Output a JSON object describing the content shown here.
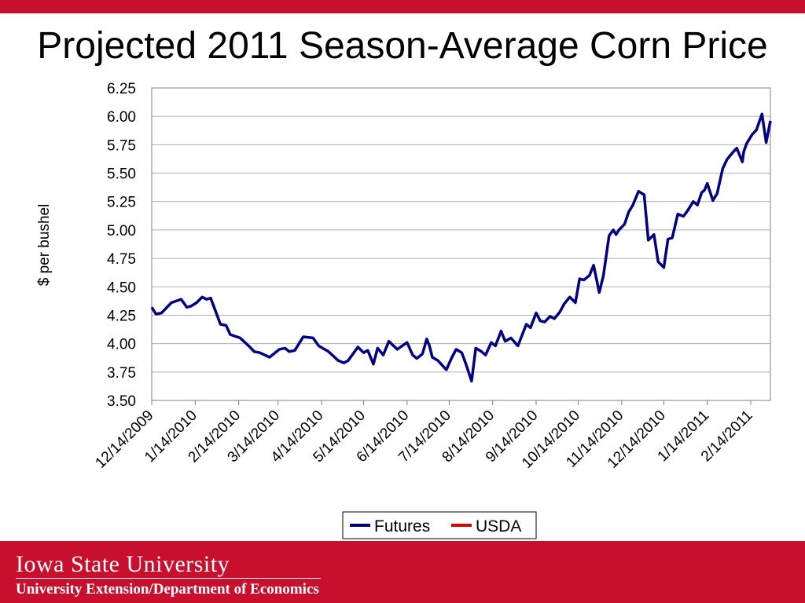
{
  "header": {
    "title": "Projected 2011 Season-Average Corn Price"
  },
  "footer": {
    "university": "Iowa State University",
    "department": "University Extension/Department of Economics"
  },
  "colors": {
    "brand_red": "#c8102e",
    "futures_line": "#000080",
    "usda_line": "#e00000"
  },
  "chart_data": {
    "type": "line",
    "title": "Projected 2011 Season-Average Corn Price",
    "ylabel": "$ per bushel",
    "xlabel": "",
    "ylim": [
      3.5,
      6.25
    ],
    "y_ticks": [
      "3.50",
      "3.75",
      "4.00",
      "4.25",
      "4.50",
      "4.75",
      "5.00",
      "5.25",
      "5.50",
      "5.75",
      "6.00",
      "6.25"
    ],
    "x_range": [
      "2009-12-14",
      "2011-02-28"
    ],
    "x_ticks": [
      "12/14/2009",
      "1/14/2010",
      "2/14/2010",
      "3/14/2010",
      "4/14/2010",
      "5/14/2010",
      "6/14/2010",
      "7/14/2010",
      "8/14/2010",
      "9/14/2010",
      "10/14/2010",
      "11/14/2010",
      "12/14/2010",
      "1/14/2011",
      "2/14/2011"
    ],
    "grid": true,
    "legend": "bottom",
    "series": [
      {
        "name": "Futures",
        "x": [
          "2009-12-14",
          "2009-12-17",
          "2009-12-21",
          "2009-12-28",
          "2010-01-04",
          "2010-01-08",
          "2010-01-11",
          "2010-01-15",
          "2010-01-19",
          "2010-01-22",
          "2010-01-25",
          "2010-02-01",
          "2010-02-05",
          "2010-02-08",
          "2010-02-15",
          "2010-02-22",
          "2010-02-25",
          "2010-03-01",
          "2010-03-08",
          "2010-03-15",
          "2010-03-19",
          "2010-03-22",
          "2010-03-26",
          "2010-04-01",
          "2010-04-08",
          "2010-04-12",
          "2010-04-19",
          "2010-04-26",
          "2010-04-30",
          "2010-05-03",
          "2010-05-10",
          "2010-05-14",
          "2010-05-17",
          "2010-05-21",
          "2010-05-24",
          "2010-05-28",
          "2010-06-01",
          "2010-06-07",
          "2010-06-14",
          "2010-06-18",
          "2010-06-21",
          "2010-06-25",
          "2010-06-28",
          "2010-06-30",
          "2010-07-02",
          "2010-07-06",
          "2010-07-12",
          "2010-07-16",
          "2010-07-19",
          "2010-07-23",
          "2010-07-26",
          "2010-07-30",
          "2010-08-02",
          "2010-08-06",
          "2010-08-09",
          "2010-08-13",
          "2010-08-16",
          "2010-08-20",
          "2010-08-23",
          "2010-08-27",
          "2010-09-01",
          "2010-09-07",
          "2010-09-10",
          "2010-09-14",
          "2010-09-17",
          "2010-09-20",
          "2010-09-24",
          "2010-09-27",
          "2010-10-01",
          "2010-10-04",
          "2010-10-08",
          "2010-10-12",
          "2010-10-15",
          "2010-10-18",
          "2010-10-22",
          "2010-10-25",
          "2010-10-29",
          "2010-11-01",
          "2010-11-05",
          "2010-11-08",
          "2010-11-10",
          "2010-11-12",
          "2010-11-16",
          "2010-11-19",
          "2010-11-22",
          "2010-11-26",
          "2010-11-30",
          "2010-12-03",
          "2010-12-07",
          "2010-12-10",
          "2010-12-14",
          "2010-12-17",
          "2010-12-20",
          "2010-12-24",
          "2010-12-28",
          "2010-12-31",
          "2011-01-04",
          "2011-01-07",
          "2011-01-10",
          "2011-01-12",
          "2011-01-14",
          "2011-01-18",
          "2011-01-21",
          "2011-01-25",
          "2011-01-28",
          "2011-02-01",
          "2011-02-04",
          "2011-02-08",
          "2011-02-09",
          "2011-02-11",
          "2011-02-15",
          "2011-02-18",
          "2011-02-22",
          "2011-02-24",
          "2011-02-25",
          "2011-02-28"
        ],
        "values": [
          4.32,
          4.26,
          4.27,
          4.36,
          4.39,
          4.32,
          4.33,
          4.36,
          4.41,
          4.39,
          4.4,
          4.17,
          4.16,
          4.08,
          4.05,
          3.97,
          3.93,
          3.92,
          3.88,
          3.95,
          3.96,
          3.93,
          3.94,
          4.06,
          4.05,
          3.98,
          3.93,
          3.85,
          3.83,
          3.85,
          3.97,
          3.92,
          3.94,
          3.82,
          3.96,
          3.9,
          4.02,
          3.95,
          4.01,
          3.9,
          3.87,
          3.91,
          4.04,
          3.98,
          3.88,
          3.85,
          3.77,
          3.88,
          3.95,
          3.92,
          3.82,
          3.67,
          3.96,
          3.93,
          3.9,
          4.01,
          3.98,
          4.11,
          4.02,
          4.05,
          3.98,
          4.17,
          4.14,
          4.27,
          4.2,
          4.19,
          4.24,
          4.22,
          4.28,
          4.35,
          4.41,
          4.36,
          4.57,
          4.56,
          4.6,
          4.69,
          4.45,
          4.6,
          4.95,
          5.0,
          4.96,
          5.0,
          5.05,
          5.16,
          5.22,
          5.34,
          5.31,
          4.91,
          4.96,
          4.72,
          4.67,
          4.92,
          4.93,
          5.14,
          5.12,
          5.17,
          5.25,
          5.22,
          5.33,
          5.35,
          5.41,
          5.26,
          5.32,
          5.54,
          5.62,
          5.68,
          5.72,
          5.6,
          5.69,
          5.76,
          5.84,
          5.88,
          6.02,
          5.85,
          5.77,
          5.96
        ]
      },
      {
        "name": "USDA",
        "x": [],
        "values": []
      }
    ]
  }
}
